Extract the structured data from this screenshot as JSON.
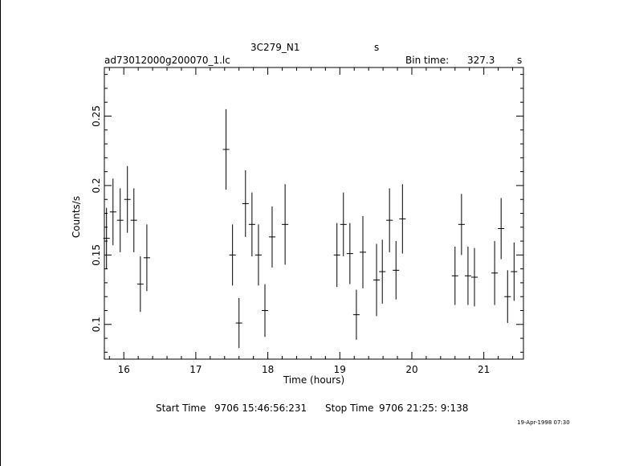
{
  "header": {
    "source_name": "3C279_N1",
    "source_unit": "s",
    "file_name": "ad73012000g200070_1.lc",
    "bin_time_label": "Bin time:",
    "bin_time_value": "327.3",
    "bin_time_unit": "s"
  },
  "footer": {
    "start_label": "Start Time",
    "start_value": "9706 15:46:56:231",
    "stop_label": "Stop Time",
    "stop_value": "9706 21:25: 9:138",
    "date_stamp": "19-Apr-1998 07:30"
  },
  "chart_data": {
    "type": "scatter",
    "xlabel": "Time (hours)",
    "ylabel": "Counts/s",
    "xlim": [
      15.73,
      21.55
    ],
    "ylim": [
      0.075,
      0.285
    ],
    "xticks": [
      16,
      17,
      18,
      19,
      20,
      21
    ],
    "yticks": [
      0.1,
      0.15,
      0.2,
      0.25
    ],
    "ytick_labels": [
      "0.1",
      "0.15",
      "0.2",
      "0.25"
    ],
    "grid": false,
    "error_bars": true,
    "points": [
      {
        "x": 15.76,
        "y": 0.162,
        "xerr": 0.045,
        "yerr": 0.022
      },
      {
        "x": 15.85,
        "y": 0.181,
        "xerr": 0.045,
        "yerr": 0.024
      },
      {
        "x": 15.95,
        "y": 0.175,
        "xerr": 0.045,
        "yerr": 0.023
      },
      {
        "x": 16.05,
        "y": 0.19,
        "xerr": 0.045,
        "yerr": 0.024
      },
      {
        "x": 16.14,
        "y": 0.175,
        "xerr": 0.045,
        "yerr": 0.023
      },
      {
        "x": 16.23,
        "y": 0.129,
        "xerr": 0.045,
        "yerr": 0.02
      },
      {
        "x": 16.32,
        "y": 0.148,
        "xerr": 0.045,
        "yerr": 0.024
      },
      {
        "x": 17.42,
        "y": 0.226,
        "xerr": 0.045,
        "yerr": 0.029
      },
      {
        "x": 17.51,
        "y": 0.15,
        "xerr": 0.045,
        "yerr": 0.022
      },
      {
        "x": 17.6,
        "y": 0.101,
        "xerr": 0.045,
        "yerr": 0.018
      },
      {
        "x": 17.69,
        "y": 0.187,
        "xerr": 0.045,
        "yerr": 0.024
      },
      {
        "x": 17.78,
        "y": 0.172,
        "xerr": 0.045,
        "yerr": 0.023
      },
      {
        "x": 17.87,
        "y": 0.15,
        "xerr": 0.045,
        "yerr": 0.022
      },
      {
        "x": 17.96,
        "y": 0.11,
        "xerr": 0.045,
        "yerr": 0.019
      },
      {
        "x": 18.06,
        "y": 0.163,
        "xerr": 0.045,
        "yerr": 0.022
      },
      {
        "x": 18.24,
        "y": 0.172,
        "xerr": 0.045,
        "yerr": 0.029
      },
      {
        "x": 18.96,
        "y": 0.15,
        "xerr": 0.045,
        "yerr": 0.023
      },
      {
        "x": 19.05,
        "y": 0.172,
        "xerr": 0.045,
        "yerr": 0.023
      },
      {
        "x": 19.14,
        "y": 0.151,
        "xerr": 0.045,
        "yerr": 0.022
      },
      {
        "x": 19.23,
        "y": 0.107,
        "xerr": 0.045,
        "yerr": 0.018
      },
      {
        "x": 19.32,
        "y": 0.152,
        "xerr": 0.045,
        "yerr": 0.026
      },
      {
        "x": 19.51,
        "y": 0.132,
        "xerr": 0.045,
        "yerr": 0.026
      },
      {
        "x": 19.59,
        "y": 0.138,
        "xerr": 0.045,
        "yerr": 0.023
      },
      {
        "x": 19.69,
        "y": 0.175,
        "xerr": 0.045,
        "yerr": 0.023
      },
      {
        "x": 19.78,
        "y": 0.139,
        "xerr": 0.045,
        "yerr": 0.021
      },
      {
        "x": 19.87,
        "y": 0.176,
        "xerr": 0.045,
        "yerr": 0.025
      },
      {
        "x": 20.6,
        "y": 0.135,
        "xerr": 0.045,
        "yerr": 0.021
      },
      {
        "x": 20.69,
        "y": 0.172,
        "xerr": 0.045,
        "yerr": 0.022
      },
      {
        "x": 20.78,
        "y": 0.135,
        "xerr": 0.045,
        "yerr": 0.021
      },
      {
        "x": 20.87,
        "y": 0.134,
        "xerr": 0.045,
        "yerr": 0.021
      },
      {
        "x": 21.15,
        "y": 0.137,
        "xerr": 0.045,
        "yerr": 0.023
      },
      {
        "x": 21.24,
        "y": 0.169,
        "xerr": 0.045,
        "yerr": 0.022
      },
      {
        "x": 21.33,
        "y": 0.12,
        "xerr": 0.045,
        "yerr": 0.019
      },
      {
        "x": 21.42,
        "y": 0.138,
        "xerr": 0.045,
        "yerr": 0.021
      }
    ]
  }
}
